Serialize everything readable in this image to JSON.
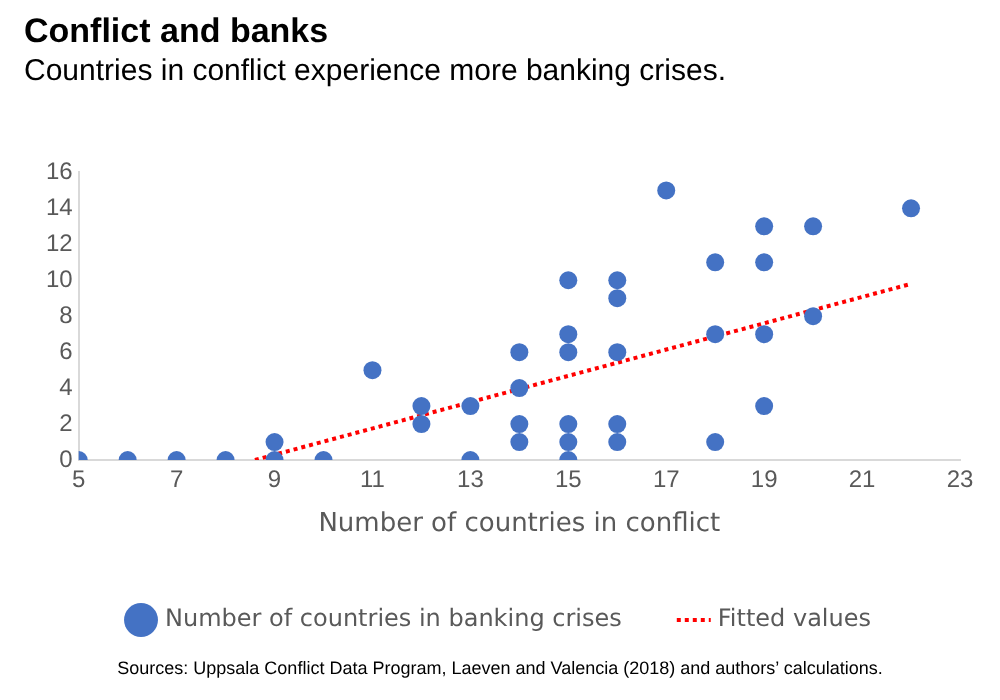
{
  "chart_data": {
    "type": "scatter",
    "title": "Conflict and banks",
    "subtitle": "Countries in conflict experience more banking crises.",
    "xlabel": "Number of countries in conflict",
    "series": [
      {
        "name": "Number of countries in banking crises",
        "color": "#4472c4",
        "marker": "circle",
        "x": [
          5,
          6,
          7,
          8,
          9,
          9,
          10,
          11,
          12,
          12,
          13,
          13,
          14,
          14,
          14,
          14,
          15,
          15,
          15,
          15,
          15,
          15,
          16,
          16,
          16,
          16,
          16,
          17,
          18,
          18,
          18,
          19,
          19,
          19,
          19,
          20,
          20,
          22
        ],
        "values": [
          0,
          0,
          0,
          0,
          0,
          1,
          0,
          5,
          3,
          2,
          3,
          0,
          6,
          4,
          2,
          1,
          10,
          7,
          6,
          2,
          1,
          0,
          10,
          9,
          6,
          2,
          1,
          15,
          11,
          7,
          1,
          13,
          11,
          7,
          3,
          13,
          8,
          14
        ]
      },
      {
        "name": "Fitted values",
        "type": "line",
        "color": "#ff0000",
        "line_style": "dotted",
        "marker": "none",
        "x": [
          8.6,
          22
        ],
        "values": [
          0,
          9.8
        ]
      }
    ],
    "xlim": [
      5,
      23
    ],
    "xticks": [
      5,
      7,
      9,
      11,
      13,
      15,
      17,
      19,
      21,
      23
    ],
    "ylim": [
      0,
      16
    ],
    "yticks": [
      0,
      2,
      4,
      6,
      8,
      10,
      12,
      14,
      16
    ],
    "grid": false,
    "legend": "bottom",
    "annotations": [
      "Sources: Uppsala Conflict Data Program, Laeven and Valencia (2018) and authors’ calculations."
    ]
  }
}
